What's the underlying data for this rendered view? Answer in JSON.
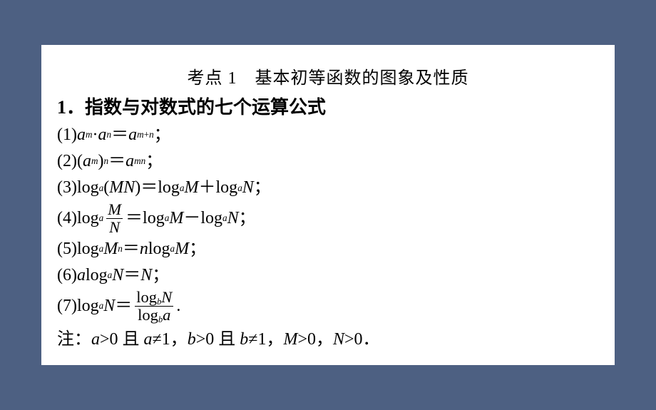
{
  "background_color": "#4d6082",
  "page_background": "#ffffff",
  "text_color": "#000000",
  "title": "考点 1　基本初等函数的图象及性质",
  "subtitle": "1．指数与对数式的七个运算公式",
  "formulas": {
    "f1_label": "(1)",
    "f2_label": "(2)",
    "f3_label": "(3)",
    "f4_label": "(4)",
    "f5_label": "(5)",
    "f6_label": "(6)",
    "f7_label": "(7)"
  },
  "note_prefix": "注：",
  "note_cond": "a>0 且 a≠1，b>0 且 b≠1，M>0，N>0．",
  "symbols": {
    "eq": "＝",
    "plus": "＋",
    "minus": "－",
    "semicolon": "；",
    "dot": "·",
    "period": "."
  },
  "math": {
    "a": "a",
    "b": "b",
    "m": "m",
    "n": "n",
    "M": "M",
    "N": "N",
    "MN": "MN",
    "log": "log"
  }
}
